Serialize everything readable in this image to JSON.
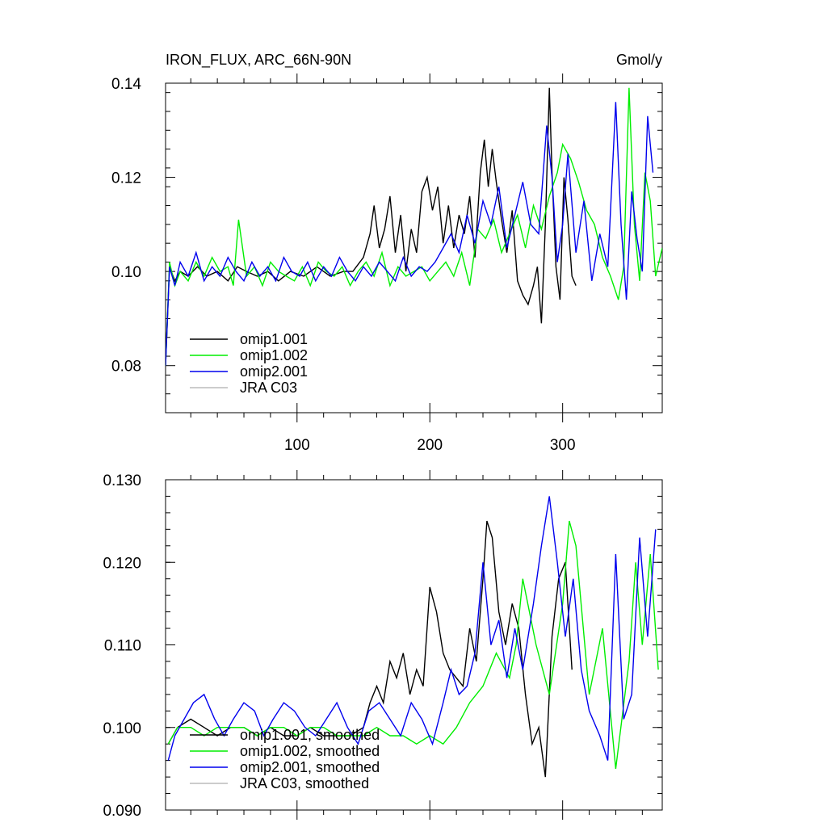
{
  "chart_data": [
    {
      "type": "line",
      "title": "IRON_FLUX, ARC_66N-90N",
      "units": "Gmol/y",
      "xlim": [
        1,
        375
      ],
      "ylim": [
        0.07,
        0.14
      ],
      "x_ticks": [
        100,
        200,
        300
      ],
      "x_tick_labels": [
        "100",
        "200",
        "300"
      ],
      "y_ticks": [
        0.08,
        0.1,
        0.12,
        0.14
      ],
      "y_tick_labels": [
        "0.08",
        "0.10",
        "0.12",
        "0.14"
      ],
      "grid": false,
      "legend_position": "bottom-left",
      "series": [
        {
          "name": "omip1.001",
          "color": "#000000",
          "x": [
            1,
            4,
            8,
            12,
            18,
            25,
            32,
            40,
            48,
            55,
            62,
            70,
            78,
            86,
            95,
            105,
            115,
            125,
            135,
            142,
            150,
            155,
            158,
            162,
            166,
            170,
            174,
            178,
            182,
            186,
            190,
            194,
            198,
            202,
            206,
            210,
            214,
            218,
            222,
            226,
            230,
            234,
            238,
            241,
            244,
            247,
            250,
            254,
            258,
            262,
            266,
            270,
            274,
            278,
            281,
            284,
            287,
            290,
            292,
            295,
            298,
            301,
            304,
            307,
            310
          ],
          "values": [
            0.08,
            0.101,
            0.098,
            0.1,
            0.099,
            0.101,
            0.099,
            0.1,
            0.098,
            0.101,
            0.1,
            0.099,
            0.1,
            0.098,
            0.1,
            0.099,
            0.101,
            0.099,
            0.1,
            0.1,
            0.103,
            0.108,
            0.114,
            0.105,
            0.109,
            0.116,
            0.104,
            0.112,
            0.1,
            0.109,
            0.104,
            0.117,
            0.12,
            0.113,
            0.118,
            0.106,
            0.114,
            0.105,
            0.112,
            0.108,
            0.116,
            0.103,
            0.121,
            0.128,
            0.118,
            0.126,
            0.119,
            0.111,
            0.104,
            0.113,
            0.098,
            0.095,
            0.093,
            0.097,
            0.101,
            0.089,
            0.11,
            0.139,
            0.121,
            0.101,
            0.094,
            0.12,
            0.111,
            0.099,
            0.097
          ]
        },
        {
          "name": "omip1.002",
          "color": "#00ee00",
          "x": [
            1,
            4,
            8,
            12,
            18,
            24,
            30,
            36,
            42,
            48,
            52,
            56,
            62,
            68,
            74,
            80,
            86,
            92,
            98,
            104,
            110,
            116,
            122,
            128,
            134,
            140,
            146,
            152,
            158,
            164,
            170,
            176,
            182,
            188,
            194,
            200,
            206,
            212,
            218,
            224,
            230,
            236,
            242,
            248,
            254,
            260,
            266,
            272,
            278,
            284,
            290,
            296,
            300,
            306,
            312,
            318,
            324,
            330,
            336,
            342,
            346,
            350,
            354,
            358,
            362,
            366,
            370,
            375
          ],
          "values": [
            0.08,
            0.102,
            0.097,
            0.1,
            0.098,
            0.102,
            0.099,
            0.103,
            0.1,
            0.101,
            0.097,
            0.111,
            0.099,
            0.101,
            0.097,
            0.102,
            0.1,
            0.099,
            0.098,
            0.101,
            0.097,
            0.102,
            0.1,
            0.099,
            0.101,
            0.097,
            0.1,
            0.102,
            0.099,
            0.104,
            0.097,
            0.101,
            0.099,
            0.1,
            0.101,
            0.098,
            0.1,
            0.102,
            0.099,
            0.104,
            0.097,
            0.109,
            0.107,
            0.111,
            0.104,
            0.108,
            0.112,
            0.105,
            0.114,
            0.109,
            0.116,
            0.121,
            0.127,
            0.124,
            0.119,
            0.113,
            0.11,
            0.103,
            0.099,
            0.094,
            0.101,
            0.139,
            0.11,
            0.098,
            0.121,
            0.115,
            0.099,
            0.105
          ]
        },
        {
          "name": "omip2.001",
          "color": "#0000ee",
          "x": [
            1,
            4,
            8,
            12,
            18,
            24,
            30,
            36,
            42,
            48,
            54,
            60,
            66,
            72,
            78,
            84,
            90,
            96,
            102,
            108,
            114,
            120,
            126,
            132,
            138,
            144,
            150,
            156,
            162,
            168,
            174,
            180,
            186,
            192,
            198,
            204,
            210,
            216,
            222,
            228,
            234,
            240,
            246,
            252,
            258,
            264,
            270,
            276,
            282,
            288,
            292,
            296,
            300,
            304,
            310,
            316,
            322,
            328,
            334,
            340,
            344,
            348,
            352,
            356,
            360,
            364,
            368
          ],
          "values": [
            0.08,
            0.101,
            0.097,
            0.102,
            0.099,
            0.104,
            0.098,
            0.101,
            0.099,
            0.103,
            0.1,
            0.098,
            0.102,
            0.099,
            0.101,
            0.098,
            0.103,
            0.1,
            0.099,
            0.102,
            0.098,
            0.101,
            0.099,
            0.103,
            0.1,
            0.098,
            0.101,
            0.099,
            0.102,
            0.1,
            0.098,
            0.103,
            0.099,
            0.101,
            0.1,
            0.102,
            0.105,
            0.108,
            0.104,
            0.112,
            0.106,
            0.115,
            0.11,
            0.118,
            0.105,
            0.112,
            0.119,
            0.11,
            0.108,
            0.131,
            0.12,
            0.102,
            0.11,
            0.125,
            0.104,
            0.115,
            0.098,
            0.108,
            0.101,
            0.136,
            0.11,
            0.094,
            0.117,
            0.107,
            0.1,
            0.133,
            0.121
          ]
        },
        {
          "name": "JRA C03",
          "color": "#bbbbbb",
          "x": [],
          "values": []
        }
      ]
    },
    {
      "type": "line",
      "xlim": [
        1,
        375
      ],
      "ylim": [
        0.09,
        0.13
      ],
      "x_ticks": [
        100,
        200,
        300
      ],
      "y_ticks": [
        0.09,
        0.1,
        0.11,
        0.12,
        0.13
      ],
      "y_tick_labels": [
        "0.090",
        "0.100",
        "0.110",
        "0.120",
        "0.130"
      ],
      "grid": false,
      "legend_position": "bottom-left",
      "series": [
        {
          "name": "omip1.001, smoothed",
          "color": "#000000",
          "x": [
            3,
            10,
            20,
            30,
            40,
            50,
            60,
            70,
            80,
            90,
            100,
            110,
            120,
            130,
            140,
            150,
            155,
            160,
            165,
            170,
            175,
            180,
            185,
            190,
            195,
            200,
            205,
            210,
            215,
            220,
            225,
            230,
            235,
            240,
            243,
            247,
            252,
            257,
            262,
            267,
            272,
            277,
            282,
            287,
            292,
            297,
            302,
            307
          ],
          "values": [
            0.098,
            0.1,
            0.101,
            0.1,
            0.099,
            0.1,
            0.1,
            0.099,
            0.1,
            0.099,
            0.099,
            0.1,
            0.099,
            0.099,
            0.099,
            0.1,
            0.103,
            0.105,
            0.103,
            0.108,
            0.106,
            0.109,
            0.104,
            0.107,
            0.105,
            0.117,
            0.114,
            0.109,
            0.107,
            0.106,
            0.105,
            0.112,
            0.108,
            0.118,
            0.125,
            0.123,
            0.114,
            0.11,
            0.115,
            0.112,
            0.104,
            0.098,
            0.1,
            0.094,
            0.111,
            0.118,
            0.12,
            0.107
          ]
        },
        {
          "name": "omip1.002, smoothed",
          "color": "#00ee00",
          "x": [
            3,
            10,
            20,
            30,
            40,
            50,
            60,
            70,
            80,
            90,
            100,
            110,
            120,
            130,
            140,
            150,
            160,
            170,
            180,
            190,
            200,
            210,
            220,
            230,
            240,
            250,
            260,
            265,
            270,
            280,
            290,
            300,
            305,
            310,
            320,
            330,
            340,
            350,
            355,
            360,
            366,
            372
          ],
          "values": [
            0.098,
            0.1,
            0.1,
            0.099,
            0.1,
            0.1,
            0.1,
            0.099,
            0.1,
            0.1,
            0.099,
            0.1,
            0.1,
            0.099,
            0.099,
            0.099,
            0.1,
            0.099,
            0.099,
            0.098,
            0.099,
            0.098,
            0.1,
            0.103,
            0.105,
            0.109,
            0.106,
            0.11,
            0.118,
            0.11,
            0.104,
            0.115,
            0.125,
            0.122,
            0.104,
            0.112,
            0.095,
            0.108,
            0.12,
            0.11,
            0.121,
            0.107
          ]
        },
        {
          "name": "omip2.001, smoothed",
          "color": "#0000ee",
          "x": [
            3,
            8,
            15,
            22,
            30,
            38,
            45,
            52,
            60,
            68,
            75,
            82,
            90,
            98,
            106,
            114,
            122,
            130,
            138,
            146,
            154,
            162,
            170,
            178,
            186,
            194,
            202,
            210,
            216,
            222,
            228,
            234,
            240,
            246,
            252,
            258,
            264,
            270,
            278,
            284,
            290,
            296,
            302,
            308,
            314,
            320,
            328,
            334,
            340,
            346,
            352,
            358,
            364,
            370
          ],
          "values": [
            0.096,
            0.099,
            0.101,
            0.103,
            0.104,
            0.101,
            0.099,
            0.101,
            0.103,
            0.102,
            0.099,
            0.101,
            0.103,
            0.102,
            0.1,
            0.099,
            0.101,
            0.103,
            0.1,
            0.098,
            0.102,
            0.103,
            0.101,
            0.099,
            0.103,
            0.101,
            0.098,
            0.103,
            0.107,
            0.104,
            0.105,
            0.109,
            0.12,
            0.11,
            0.113,
            0.106,
            0.112,
            0.107,
            0.115,
            0.122,
            0.128,
            0.12,
            0.111,
            0.118,
            0.107,
            0.102,
            0.099,
            0.096,
            0.121,
            0.101,
            0.104,
            0.123,
            0.111,
            0.124
          ]
        },
        {
          "name": "JRA C03, smoothed",
          "color": "#bbbbbb",
          "x": [],
          "values": []
        }
      ]
    }
  ]
}
